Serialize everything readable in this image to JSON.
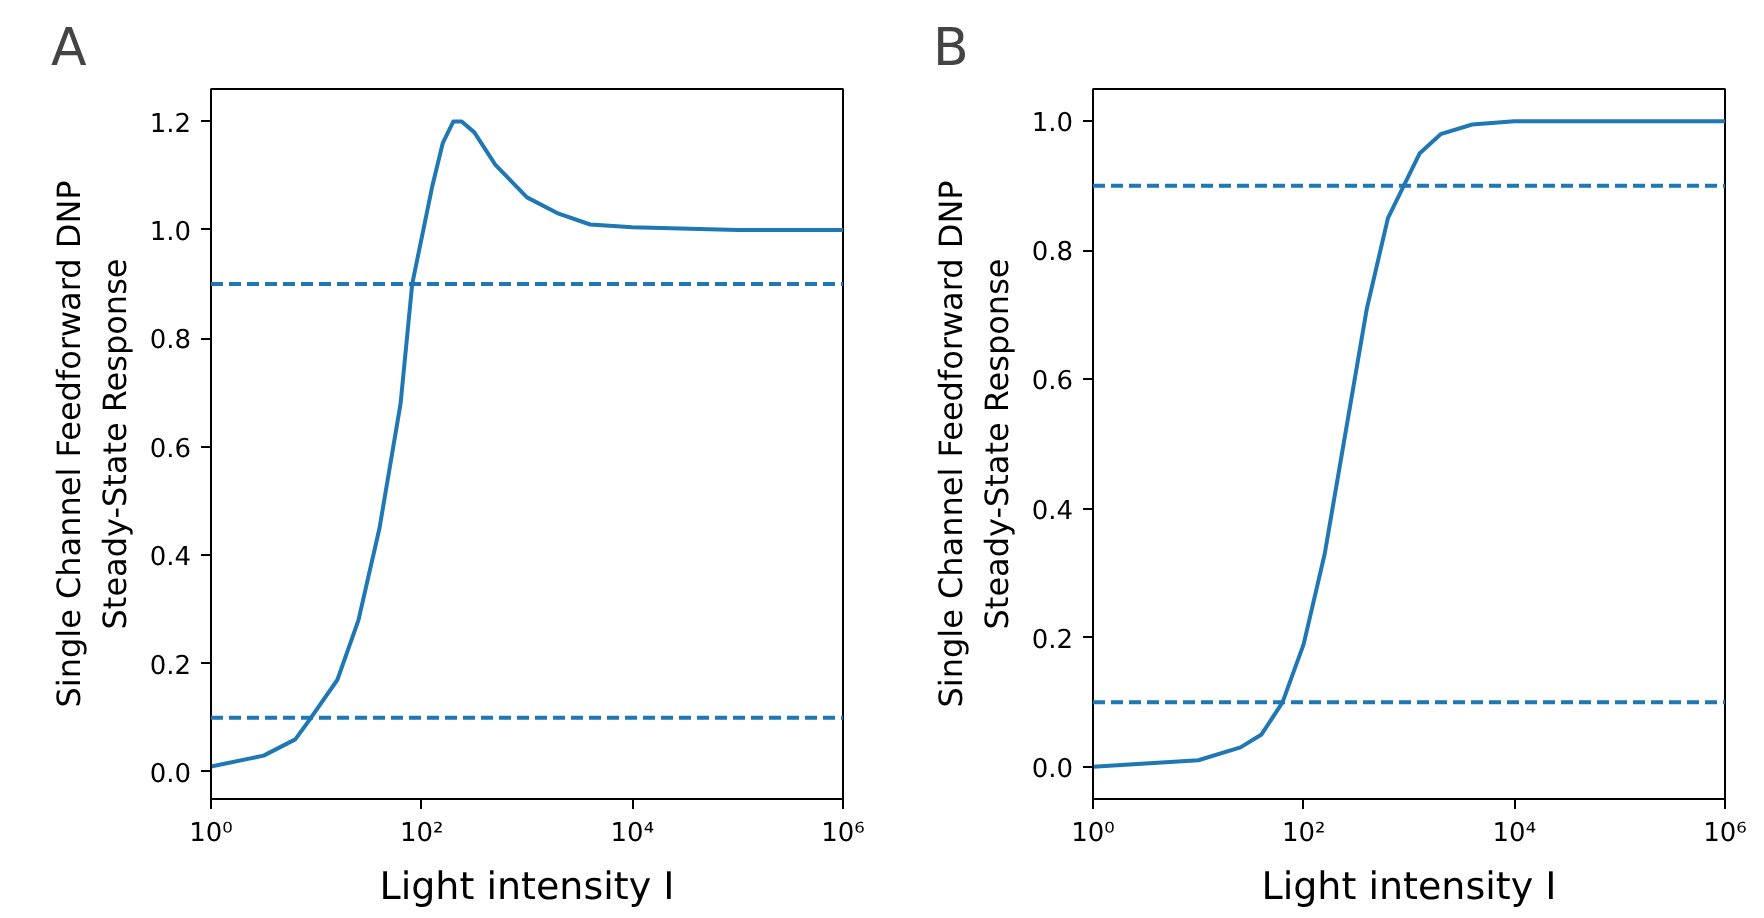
{
  "chart_data": [
    {
      "type": "line",
      "title": "A",
      "xlabel": "Light intensity I",
      "ylabel": "Single Channel Feedforward DNP\nSteady-State Response",
      "log": "x",
      "xlim": [
        1,
        1000000
      ],
      "ylim": [
        -0.05,
        1.26
      ],
      "xticks": [
        {
          "value": 1,
          "label": "10⁰"
        },
        {
          "value": 100,
          "label": "10²"
        },
        {
          "value": 10000,
          "label": "10⁴"
        },
        {
          "value": 1000000,
          "label": "10⁶"
        }
      ],
      "yticks": [
        {
          "value": 0,
          "label": "0.0"
        },
        {
          "value": 0.2,
          "label": "0.2"
        },
        {
          "value": 0.4,
          "label": "0.4"
        },
        {
          "value": 0.6,
          "label": "0.6"
        },
        {
          "value": 0.8,
          "label": "0.8"
        },
        {
          "value": 1,
          "label": "1.0"
        },
        {
          "value": 1.2,
          "label": "1.2"
        }
      ],
      "grid": false,
      "marker": "none",
      "line_style": "solid",
      "series": [
        {
          "color": "#1f77b4",
          "x": [
            1,
            3.162,
            6.31,
            8.91,
            15.85,
            25.12,
            39.81,
            63.1,
            81.3,
            125.9,
            158.5,
            199.5,
            239.9,
            316.2,
            501.2,
            1000,
            1995,
            3981,
            10000,
            100000,
            1000000
          ],
          "values": [
            0.01,
            0.03,
            0.06,
            0.1,
            0.17,
            0.28,
            0.45,
            0.68,
            0.9,
            1.08,
            1.16,
            1.2,
            1.2,
            1.18,
            1.12,
            1.06,
            1.03,
            1.01,
            1.005,
            1.0,
            1.0
          ]
        }
      ],
      "ref_lines": [
        {
          "axis": "y",
          "value": 0.1,
          "color": "#1f77b4",
          "line_style": "dashed"
        },
        {
          "axis": "y",
          "value": 0.9,
          "color": "#1f77b4",
          "line_style": "dashed"
        }
      ]
    },
    {
      "type": "line",
      "title": "B",
      "xlabel": "Light intensity I",
      "ylabel": "Single Channel Feedforward DNP\nSteady-State Response",
      "log": "x",
      "xlim": [
        1,
        1000000
      ],
      "ylim": [
        -0.05,
        1.05
      ],
      "xticks": [
        {
          "value": 1,
          "label": "10⁰"
        },
        {
          "value": 100,
          "label": "10²"
        },
        {
          "value": 10000,
          "label": "10⁴"
        },
        {
          "value": 1000000,
          "label": "10⁶"
        }
      ],
      "yticks": [
        {
          "value": 0,
          "label": "0.0"
        },
        {
          "value": 0.2,
          "label": "0.2"
        },
        {
          "value": 0.4,
          "label": "0.4"
        },
        {
          "value": 0.6,
          "label": "0.6"
        },
        {
          "value": 0.8,
          "label": "0.8"
        },
        {
          "value": 1,
          "label": "1.0"
        }
      ],
      "grid": false,
      "marker": "none",
      "line_style": "solid",
      "series": [
        {
          "color": "#1f77b4",
          "x": [
            1,
            10,
            25.12,
            39.81,
            63.1,
            100,
            158.5,
            251.2,
            398.1,
            631,
            891,
            1259,
            1995,
            3981,
            10000,
            1000000
          ],
          "values": [
            0.0,
            0.01,
            0.03,
            0.05,
            0.1,
            0.19,
            0.33,
            0.52,
            0.71,
            0.85,
            0.9,
            0.95,
            0.98,
            0.995,
            1.0,
            1.0
          ]
        }
      ],
      "ref_lines": [
        {
          "axis": "y",
          "value": 0.1,
          "color": "#1f77b4",
          "line_style": "dashed"
        },
        {
          "axis": "y",
          "value": 0.9,
          "color": "#1f77b4",
          "line_style": "dashed"
        }
      ]
    }
  ]
}
